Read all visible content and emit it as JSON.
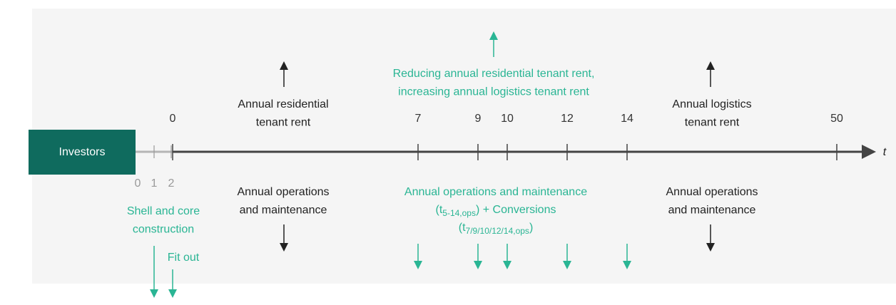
{
  "investors": "Investors",
  "axis_label": "t",
  "top_ticks": [
    "0",
    "7",
    "9",
    "10",
    "12",
    "14",
    "50"
  ],
  "bottom_ticks": [
    "0",
    "1",
    "2"
  ],
  "annotations": [
    {
      "lines": [
        "Annual residential",
        "tenant rent"
      ]
    },
    {
      "lines": [
        "Reducing annual residential tenant rent,",
        "increasing annual logistics tenant rent"
      ]
    },
    {
      "lines": [
        "Annual logistics",
        "tenant rent"
      ]
    },
    {
      "lines": [
        "Annual operations",
        "and maintenance"
      ]
    },
    {
      "lines": [
        "Annual operations and maintenance",
        {
          "text": "(t",
          "sub": "5-14,ops",
          "rest": ") + Conversions"
        },
        {
          "text": "(t",
          "sub": "7/9/10/12/14,ops",
          "rest": ")"
        }
      ]
    },
    {
      "lines": [
        "Annual operations",
        "and maintenance"
      ]
    },
    {
      "lines": [
        "Shell and core",
        "construction"
      ]
    },
    {
      "lines": [
        "Fit out"
      ]
    }
  ]
}
